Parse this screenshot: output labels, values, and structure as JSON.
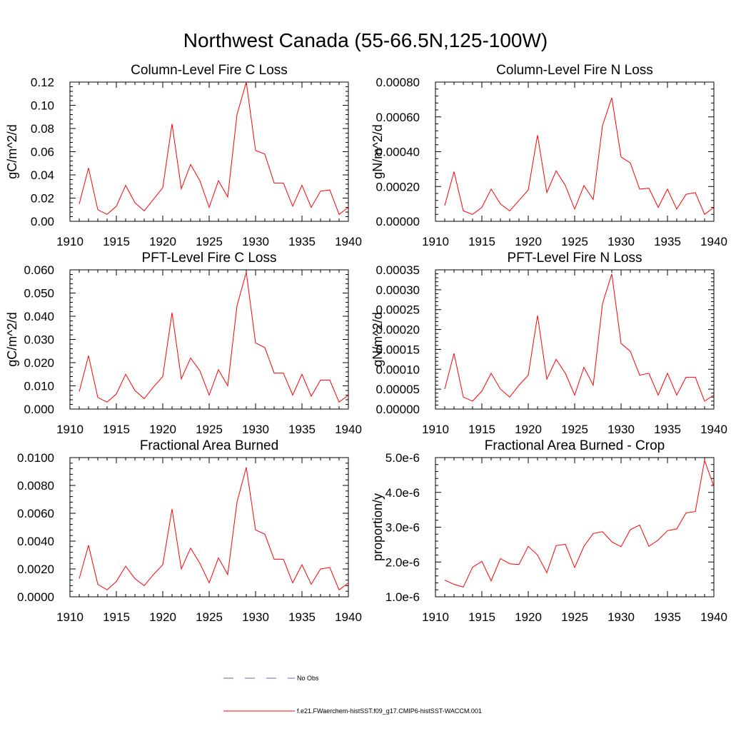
{
  "figure_title": "Northwest Canada (55-66.5N,125-100W)",
  "chart_data": [
    {
      "type": "line",
      "title": "Column-Level Fire C Loss",
      "ylabel": "gC/m^2/d",
      "xlim": [
        1910,
        1940
      ],
      "ylim": [
        0,
        0.12
      ],
      "x_ticks": [
        1910,
        1915,
        1920,
        1925,
        1930,
        1935,
        1940
      ],
      "y_ticks": [
        0,
        0.02,
        0.04,
        0.06,
        0.08,
        0.1,
        0.12
      ],
      "y_tick_labels": [
        "0.00",
        "0.02",
        "0.04",
        "0.06",
        "0.08",
        "0.10",
        "0.12"
      ],
      "x": [
        1911,
        1912,
        1913,
        1914,
        1915,
        1916,
        1917,
        1918,
        1919,
        1920,
        1921,
        1922,
        1923,
        1924,
        1925,
        1926,
        1927,
        1928,
        1929,
        1930,
        1931,
        1932,
        1933,
        1934,
        1935,
        1936,
        1937,
        1938,
        1939,
        1940
      ],
      "series": [
        {
          "name": "f.e21.FWaerchem-histSST.f09_g17.CMIP6-histSST-WACCM.001",
          "values": [
            0.015,
            0.046,
            0.01,
            0.006,
            0.013,
            0.031,
            0.016,
            0.009,
            0.019,
            0.029,
            0.084,
            0.028,
            0.049,
            0.035,
            0.012,
            0.035,
            0.021,
            0.092,
            0.12,
            0.061,
            0.058,
            0.033,
            0.033,
            0.013,
            0.031,
            0.012,
            0.026,
            0.027,
            0.006,
            0.012
          ]
        }
      ]
    },
    {
      "type": "line",
      "title": "Column-Level Fire N Loss",
      "ylabel": "gN/m^2/d",
      "xlim": [
        1910,
        1940
      ],
      "ylim": [
        0,
        0.0008
      ],
      "x_ticks": [
        1910,
        1915,
        1920,
        1925,
        1930,
        1935,
        1940
      ],
      "y_ticks": [
        0,
        0.0002,
        0.0004,
        0.0006,
        0.0008
      ],
      "y_tick_labels": [
        "0.00000",
        "0.00020",
        "0.00040",
        "0.00060",
        "0.00080"
      ],
      "x": [
        1911,
        1912,
        1913,
        1914,
        1915,
        1916,
        1917,
        1918,
        1919,
        1920,
        1921,
        1922,
        1923,
        1924,
        1925,
        1926,
        1927,
        1928,
        1929,
        1930,
        1931,
        1932,
        1933,
        1934,
        1935,
        1936,
        1937,
        1938,
        1939,
        1940
      ],
      "series": [
        {
          "name": "f.e21.FWaerchem-histSST.f09_g17.CMIP6-histSST-WACCM.001",
          "values": [
            9e-05,
            0.000285,
            6e-05,
            4e-05,
            8e-05,
            0.000185,
            0.0001,
            6e-05,
            0.00012,
            0.00018,
            0.000495,
            0.000165,
            0.00029,
            0.000205,
            7e-05,
            0.000205,
            0.000125,
            0.00055,
            0.00071,
            0.00037,
            0.000335,
            0.000185,
            0.00019,
            8e-05,
            0.000185,
            7e-05,
            0.000155,
            0.000165,
            4e-05,
            8e-05
          ]
        }
      ]
    },
    {
      "type": "line",
      "title": "PFT-Level Fire C Loss",
      "ylabel": "gC/m^2/d",
      "xlim": [
        1910,
        1940
      ],
      "ylim": [
        0,
        0.06
      ],
      "x_ticks": [
        1910,
        1915,
        1920,
        1925,
        1930,
        1935,
        1940
      ],
      "y_ticks": [
        0,
        0.01,
        0.02,
        0.03,
        0.04,
        0.05,
        0.06
      ],
      "y_tick_labels": [
        "0.000",
        "0.010",
        "0.020",
        "0.030",
        "0.040",
        "0.050",
        "0.060"
      ],
      "x": [
        1911,
        1912,
        1913,
        1914,
        1915,
        1916,
        1917,
        1918,
        1919,
        1920,
        1921,
        1922,
        1923,
        1924,
        1925,
        1926,
        1927,
        1928,
        1929,
        1930,
        1931,
        1932,
        1933,
        1934,
        1935,
        1936,
        1937,
        1938,
        1939,
        1940
      ],
      "series": [
        {
          "name": "f.e21.FWaerchem-histSST.f09_g17.CMIP6-histSST-WACCM.001",
          "values": [
            0.0075,
            0.023,
            0.005,
            0.003,
            0.0065,
            0.015,
            0.008,
            0.0045,
            0.0095,
            0.014,
            0.0415,
            0.013,
            0.022,
            0.0165,
            0.006,
            0.017,
            0.01,
            0.0445,
            0.059,
            0.0285,
            0.0265,
            0.0155,
            0.0155,
            0.006,
            0.015,
            0.0055,
            0.0125,
            0.0125,
            0.003,
            0.006
          ]
        }
      ]
    },
    {
      "type": "line",
      "title": "PFT-Level Fire N Loss",
      "ylabel": "gN/m^2/d",
      "xlim": [
        1910,
        1940
      ],
      "ylim": [
        0,
        0.00035
      ],
      "x_ticks": [
        1910,
        1915,
        1920,
        1925,
        1930,
        1935,
        1940
      ],
      "y_ticks": [
        0,
        5e-05,
        0.0001,
        0.00015,
        0.0002,
        0.00025,
        0.0003,
        0.00035
      ],
      "y_tick_labels": [
        "0.00000",
        "0.00005",
        "0.00010",
        "0.00015",
        "0.00020",
        "0.00025",
        "0.00030",
        "0.00035"
      ],
      "x": [
        1911,
        1912,
        1913,
        1914,
        1915,
        1916,
        1917,
        1918,
        1919,
        1920,
        1921,
        1922,
        1923,
        1924,
        1925,
        1926,
        1927,
        1928,
        1929,
        1930,
        1931,
        1932,
        1933,
        1934,
        1935,
        1936,
        1937,
        1938,
        1939,
        1940
      ],
      "series": [
        {
          "name": "f.e21.FWaerchem-histSST.f09_g17.CMIP6-histSST-WACCM.001",
          "values": [
            5e-05,
            0.00014,
            3e-05,
            2e-05,
            4.5e-05,
            9e-05,
            5e-05,
            3e-05,
            6e-05,
            8.5e-05,
            0.000235,
            7.5e-05,
            0.000125,
            9e-05,
            3.5e-05,
            0.000105,
            6e-05,
            0.000265,
            0.00034,
            0.000165,
            0.000145,
            8.5e-05,
            9e-05,
            3.5e-05,
            9e-05,
            3.5e-05,
            8e-05,
            8e-05,
            2e-05,
            3.5e-05
          ]
        }
      ]
    },
    {
      "type": "line",
      "title": "Fractional Area Burned",
      "ylabel": "",
      "xlim": [
        1910,
        1940
      ],
      "ylim": [
        0,
        0.01
      ],
      "x_ticks": [
        1910,
        1915,
        1920,
        1925,
        1930,
        1935,
        1940
      ],
      "y_ticks": [
        0,
        0.002,
        0.004,
        0.006,
        0.008,
        0.01
      ],
      "y_tick_labels": [
        "0.0000",
        "0.0020",
        "0.0040",
        "0.0060",
        "0.0080",
        "0.0100"
      ],
      "x": [
        1911,
        1912,
        1913,
        1914,
        1915,
        1916,
        1917,
        1918,
        1919,
        1920,
        1921,
        1922,
        1923,
        1924,
        1925,
        1926,
        1927,
        1928,
        1929,
        1930,
        1931,
        1932,
        1933,
        1934,
        1935,
        1936,
        1937,
        1938,
        1939,
        1940
      ],
      "series": [
        {
          "name": "f.e21.FWaerchem-histSST.f09_g17.CMIP6-histSST-WACCM.001",
          "values": [
            0.0013,
            0.0037,
            0.0009,
            0.0005,
            0.0011,
            0.0022,
            0.0013,
            0.0008,
            0.0016,
            0.0023,
            0.0063,
            0.002,
            0.0035,
            0.0024,
            0.001,
            0.0028,
            0.0016,
            0.0068,
            0.0093,
            0.0048,
            0.0045,
            0.0027,
            0.0027,
            0.001,
            0.0023,
            0.0009,
            0.002,
            0.0021,
            0.0005,
            0.001
          ]
        }
      ]
    },
    {
      "type": "line",
      "title": "Fractional Area Burned - Crop",
      "ylabel": "proportion/y",
      "xlim": [
        1910,
        1940
      ],
      "ylim": [
        1e-06,
        5e-06
      ],
      "x_ticks": [
        1910,
        1915,
        1920,
        1925,
        1930,
        1935,
        1940
      ],
      "y_ticks": [
        1e-06,
        2e-06,
        3e-06,
        4e-06,
        5e-06
      ],
      "y_tick_labels": [
        "1.0e-6",
        "2.0e-6",
        "3.0e-6",
        "4.0e-6",
        "5.0e-6"
      ],
      "x": [
        1911,
        1912,
        1913,
        1914,
        1915,
        1916,
        1917,
        1918,
        1919,
        1920,
        1921,
        1922,
        1923,
        1924,
        1925,
        1926,
        1927,
        1928,
        1929,
        1930,
        1931,
        1932,
        1933,
        1934,
        1935,
        1936,
        1937,
        1938,
        1939,
        1940
      ],
      "series": [
        {
          "name": "f.e21.FWaerchem-histSST.f09_g17.CMIP6-histSST-WACCM.001",
          "values": [
            1.48e-06,
            1.36e-06,
            1.28e-06,
            1.85e-06,
            2.02e-06,
            1.46e-06,
            2.1e-06,
            1.95e-06,
            1.93e-06,
            2.45e-06,
            2.2e-06,
            1.69e-06,
            2.47e-06,
            2.51e-06,
            1.84e-06,
            2.45e-06,
            2.82e-06,
            2.87e-06,
            2.58e-06,
            2.44e-06,
            2.93e-06,
            3.06e-06,
            2.45e-06,
            2.63e-06,
            2.9e-06,
            2.95e-06,
            3.41e-06,
            3.45e-06,
            4.92e-06,
            4.17e-06
          ]
        }
      ]
    }
  ],
  "legend": [
    {
      "label": "No Obs",
      "color": "#5a6fb0",
      "style": "dashed"
    },
    {
      "label": "f.e21.FWaerchem-histSST.f09_g17.CMIP6-histSST-WACCM.001",
      "color": "#ff0000",
      "style": "solid"
    }
  ],
  "colors": {
    "series": "#ff0000",
    "axes": "#000000",
    "obs": "#5a6fb0"
  }
}
